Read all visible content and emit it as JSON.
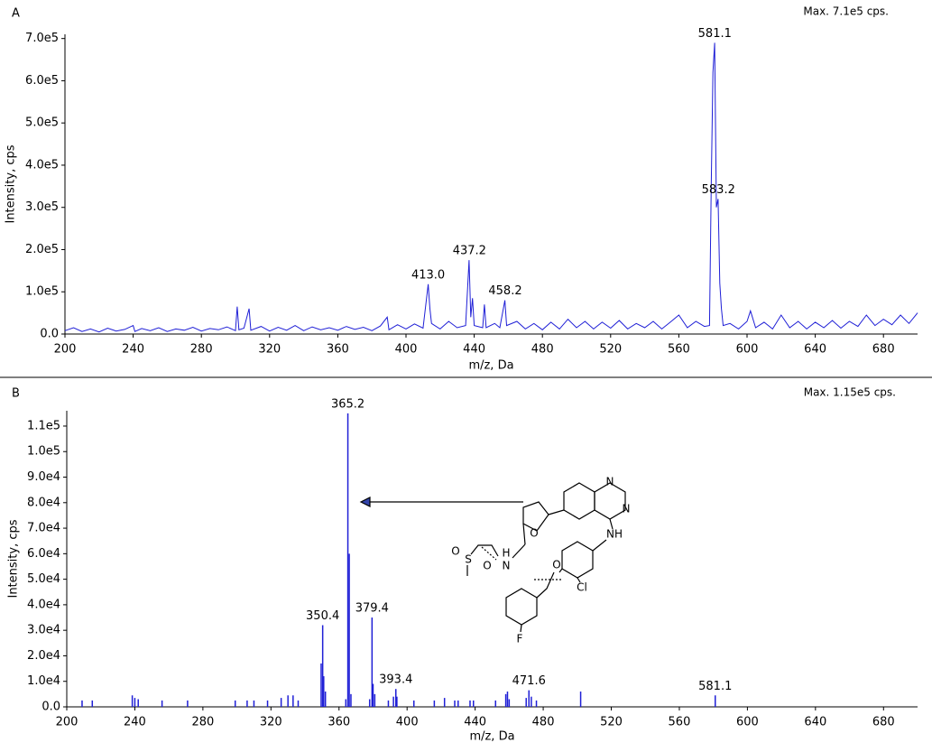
{
  "chart_data": [
    {
      "type": "line",
      "panel_label": "A",
      "max_text": "Max. 7.1e5 cps.",
      "y_label": "Intensity, cps",
      "x_label": "m/z, Da",
      "color": "#1f1fd6",
      "x": [
        200,
        205,
        210,
        215,
        220,
        225,
        230,
        235,
        240,
        241,
        245,
        250,
        255,
        260,
        265,
        270,
        275,
        280,
        285,
        290,
        295,
        300,
        301,
        302,
        305,
        308,
        309,
        315,
        320,
        325,
        330,
        335,
        340,
        345,
        350,
        355,
        360,
        365,
        370,
        375,
        380,
        385,
        389,
        390,
        395,
        400,
        405,
        410,
        413,
        414,
        415,
        420,
        425,
        430,
        435,
        437,
        438,
        439,
        440,
        445,
        446,
        447,
        452,
        455,
        458,
        459,
        465,
        470,
        475,
        480,
        485,
        490,
        495,
        500,
        505,
        510,
        515,
        520,
        525,
        530,
        535,
        540,
        545,
        550,
        555,
        560,
        565,
        570,
        575,
        578,
        579,
        580,
        581,
        582,
        583,
        584,
        585,
        586,
        590,
        595,
        600,
        602,
        605,
        610,
        615,
        620,
        625,
        630,
        635,
        640,
        645,
        650,
        655,
        660,
        665,
        670,
        675,
        680,
        685,
        690,
        695,
        700
      ],
      "values": [
        8000,
        15000,
        6000,
        12000,
        5000,
        14000,
        7000,
        11000,
        20000,
        6000,
        13000,
        8000,
        15000,
        6000,
        12000,
        9000,
        16000,
        7000,
        13000,
        10000,
        17000,
        8000,
        65000,
        10000,
        14000,
        60000,
        9000,
        18000,
        7000,
        16000,
        9000,
        20000,
        8000,
        17000,
        10000,
        15000,
        9000,
        18000,
        11000,
        16000,
        8000,
        19000,
        40000,
        10000,
        22000,
        12000,
        24000,
        14000,
        118000,
        60000,
        25000,
        12000,
        30000,
        15000,
        20000,
        175000,
        40000,
        85000,
        20000,
        15000,
        70000,
        15000,
        25000,
        15000,
        80000,
        20000,
        30000,
        12000,
        25000,
        10000,
        28000,
        12000,
        35000,
        15000,
        30000,
        12000,
        28000,
        14000,
        32000,
        12000,
        25000,
        15000,
        30000,
        12000,
        28000,
        45000,
        15000,
        30000,
        18000,
        20000,
        350000,
        620000,
        690000,
        300000,
        320000,
        120000,
        60000,
        20000,
        25000,
        12000,
        30000,
        55000,
        15000,
        28000,
        12000,
        45000,
        15000,
        30000,
        12000,
        28000,
        15000,
        32000,
        14000,
        30000,
        18000,
        45000,
        20000,
        35000,
        22000,
        45000,
        25000,
        50000
      ],
      "xlim": [
        200,
        700
      ],
      "ylim": [
        0,
        710000
      ],
      "xticks": [
        200,
        240,
        280,
        320,
        360,
        400,
        440,
        480,
        520,
        560,
        600,
        640,
        680
      ],
      "yticks": [
        {
          "value": 0,
          "label": "0.0"
        },
        {
          "value": 100000,
          "label": "1.0e5"
        },
        {
          "value": 200000,
          "label": "2.0e5"
        },
        {
          "value": 300000,
          "label": "3.0e5"
        },
        {
          "value": 400000,
          "label": "4.0e5"
        },
        {
          "value": 500000,
          "label": "5.0e5"
        },
        {
          "value": 600000,
          "label": "6.0e5"
        },
        {
          "value": 700000,
          "label": "7.0e5"
        }
      ],
      "annotations": [
        {
          "text": "413.0",
          "x": 413,
          "y": 118000
        },
        {
          "text": "437.2",
          "x": 437.2,
          "y": 175000
        },
        {
          "text": "458.2",
          "x": 458.2,
          "y": 80000
        },
        {
          "text": "583.2",
          "x": 583.2,
          "y": 320000
        },
        {
          "text": "581.1",
          "x": 581.1,
          "y": 690000
        }
      ]
    },
    {
      "type": "stem",
      "panel_label": "B",
      "max_text": "Max. 1.15e5 cps.",
      "y_label": "Intensity, cps",
      "x_label": "m/z, Da",
      "color": "#1f1fd6",
      "x": [
        209,
        215,
        238.5,
        240,
        242,
        256,
        271,
        299,
        306,
        310,
        318,
        326,
        330,
        333,
        336,
        349.5,
        350.4,
        351,
        352,
        364,
        365.2,
        366,
        367,
        378,
        379.4,
        380,
        381,
        389,
        392,
        393.4,
        394,
        404,
        416,
        422,
        428,
        430,
        437,
        439,
        452,
        458,
        459,
        460,
        470,
        471.6,
        473,
        476,
        502,
        581.1
      ],
      "values": [
        2500,
        2500,
        4500,
        3500,
        3000,
        2500,
        2500,
        2500,
        2500,
        2500,
        2500,
        3500,
        4500,
        4500,
        2500,
        17000,
        32000,
        12000,
        6000,
        3000,
        115000,
        60000,
        5000,
        3000,
        35000,
        9000,
        5000,
        2500,
        4000,
        7000,
        4000,
        2500,
        2500,
        3500,
        2500,
        2500,
        2500,
        2500,
        2500,
        5000,
        6000,
        3000,
        3500,
        6500,
        4000,
        2500,
        6000,
        4500
      ],
      "xlim": [
        200,
        700
      ],
      "ylim": [
        0,
        116000
      ],
      "xticks": [
        200,
        240,
        280,
        320,
        360,
        400,
        440,
        480,
        520,
        560,
        600,
        640,
        680
      ],
      "yticks": [
        {
          "value": 0,
          "label": "0.0"
        },
        {
          "value": 10000,
          "label": "1.0e4"
        },
        {
          "value": 20000,
          "label": "2.0e4"
        },
        {
          "value": 30000,
          "label": "3.0e4"
        },
        {
          "value": 40000,
          "label": "4.0e4"
        },
        {
          "value": 50000,
          "label": "5.0e4"
        },
        {
          "value": 60000,
          "label": "6.0e4"
        },
        {
          "value": 70000,
          "label": "7.0e4"
        },
        {
          "value": 80000,
          "label": "8.0e4"
        },
        {
          "value": 90000,
          "label": "9.0e4"
        },
        {
          "value": 100000,
          "label": "1.0e5"
        },
        {
          "value": 110000,
          "label": "1.1e5"
        }
      ],
      "annotations": [
        {
          "text": "350.4",
          "x": 350.4,
          "y": 32000
        },
        {
          "text": "365.2",
          "x": 365.2,
          "y": 115000
        },
        {
          "text": "379.4",
          "x": 379.4,
          "y": 35000
        },
        {
          "text": "393.4",
          "x": 393.4,
          "y": 7000
        },
        {
          "text": "471.6",
          "x": 471.6,
          "y": 6500
        },
        {
          "text": "581.1",
          "x": 581.1,
          "y": 4500
        }
      ],
      "structure_labels": [
        "N",
        "N",
        "NH",
        "O",
        "H",
        "N",
        "O",
        "S",
        "O",
        "O",
        "Cl",
        "F"
      ]
    }
  ]
}
